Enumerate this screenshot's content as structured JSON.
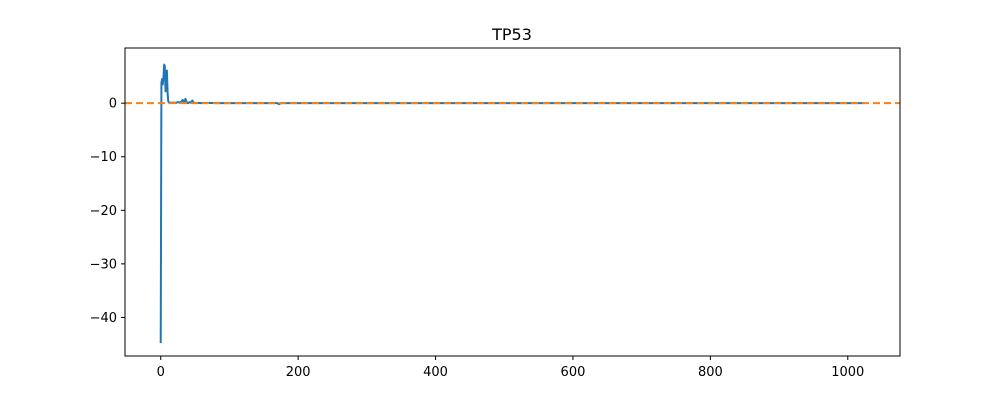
{
  "chart_data": {
    "type": "line",
    "title": "TP53",
    "xlabel": "",
    "ylabel": "",
    "xlim": [
      -52,
      1076
    ],
    "ylim": [
      -47.2,
      10.3
    ],
    "xticks": [
      0,
      200,
      400,
      600,
      800,
      1000
    ],
    "yticks": [
      0,
      -10,
      -20,
      -30,
      -40
    ],
    "xtick_labels": [
      "0",
      "200",
      "400",
      "600",
      "800",
      "1000"
    ],
    "ytick_labels": [
      "0",
      "−10",
      "−20",
      "−30",
      "−40"
    ],
    "grid": false,
    "legend": "none",
    "series": [
      {
        "color": "#1f77b4",
        "style": "solid",
        "x": [
          0,
          1,
          2,
          3,
          4,
          5,
          6,
          7,
          8,
          9,
          10,
          11,
          12,
          13,
          14,
          15,
          18,
          20,
          22,
          25,
          28,
          30,
          32,
          34,
          36,
          38,
          40,
          42,
          44,
          46,
          48,
          50,
          55,
          60,
          70,
          80,
          100,
          120,
          150,
          170,
          172,
          175,
          200,
          300,
          400,
          500,
          600,
          700,
          800,
          900,
          1000,
          1023
        ],
        "y": [
          -44.8,
          3.8,
          4.5,
          3.5,
          4.8,
          7.2,
          6.9,
          2.2,
          4.5,
          6.1,
          1.9,
          0.3,
          0.1,
          0.1,
          0.1,
          0.05,
          0.1,
          0.1,
          0.05,
          0.2,
          0.1,
          0.3,
          0.6,
          0.2,
          0.8,
          0.1,
          0.0,
          0.2,
          0.1,
          0.5,
          0.1,
          0.0,
          0.05,
          0.0,
          0.05,
          0.0,
          0.0,
          0.0,
          0.0,
          0.0,
          -0.2,
          0.0,
          0.0,
          0.0,
          0.0,
          0.0,
          0.0,
          0.0,
          0.0,
          0.0,
          0.0,
          0.0
        ]
      },
      {
        "color": "#ff7f0e",
        "style": "dashed",
        "y_constant": 0
      }
    ]
  }
}
